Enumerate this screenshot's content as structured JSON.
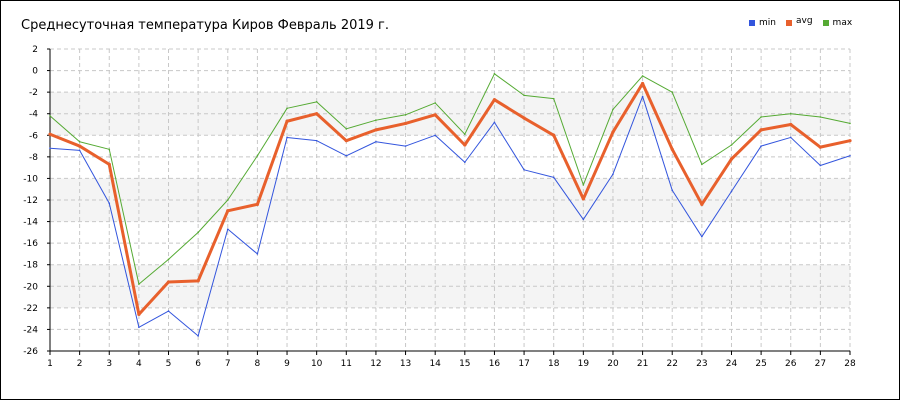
{
  "chart_data": {
    "type": "line",
    "title": "Среднесуточная температура Киров  Февраль 2019 г.",
    "xlabel": "",
    "ylabel": "",
    "x": [
      1,
      2,
      3,
      4,
      5,
      6,
      7,
      8,
      9,
      10,
      11,
      12,
      13,
      14,
      15,
      16,
      17,
      18,
      19,
      20,
      21,
      22,
      23,
      24,
      25,
      26,
      27,
      28
    ],
    "xlim": [
      1,
      28
    ],
    "ylim": [
      -26,
      2
    ],
    "yticks": [
      2,
      0,
      -2,
      -4,
      -6,
      -8,
      -10,
      -12,
      -14,
      -16,
      -18,
      -20,
      -22,
      -24,
      -26
    ],
    "grid": true,
    "legend_position": "top-right",
    "series": [
      {
        "name": "min",
        "color": "#3355dd",
        "values": [
          -7.2,
          -7.4,
          -12.3,
          -23.8,
          -22.3,
          -24.6,
          -14.7,
          -17.0,
          -6.2,
          -6.5,
          -7.9,
          -6.6,
          -7.0,
          -6.0,
          -8.5,
          -4.8,
          -9.2,
          -9.9,
          -13.8,
          -9.6,
          -2.4,
          -11.1,
          -15.4,
          -11.2,
          -7.0,
          -6.2,
          -8.8,
          -7.9
        ]
      },
      {
        "name": "avg",
        "color": "#e8602c",
        "values": [
          -5.9,
          -7.0,
          -8.7,
          -22.6,
          -19.6,
          -19.5,
          -13.0,
          -12.4,
          -4.7,
          -4.0,
          -6.5,
          -5.5,
          -4.9,
          -4.1,
          -6.9,
          -2.7,
          -4.4,
          -6.0,
          -11.9,
          -5.7,
          -1.2,
          -7.3,
          -12.4,
          -8.2,
          -5.5,
          -5.0,
          -7.1,
          -6.5
        ]
      },
      {
        "name": "max",
        "color": "#55aa33",
        "values": [
          -4.2,
          -6.6,
          -7.3,
          -19.8,
          -17.5,
          -15.0,
          -12.0,
          -7.9,
          -3.5,
          -2.9,
          -5.4,
          -4.6,
          -4.1,
          -3.0,
          -5.9,
          -0.3,
          -2.3,
          -2.6,
          -10.6,
          -3.6,
          -0.5,
          -2.0,
          -8.7,
          -6.9,
          -4.3,
          -4.0,
          -4.3,
          -4.9
        ]
      }
    ]
  }
}
